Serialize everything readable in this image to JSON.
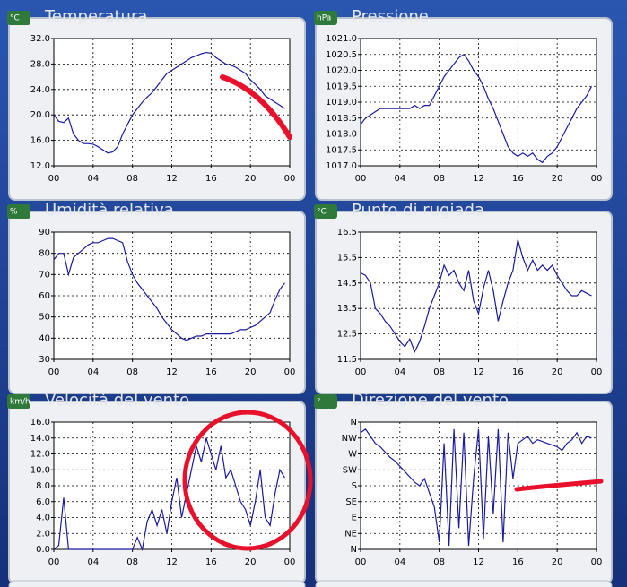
{
  "chart_data": [
    {
      "type": "line",
      "title": "Temperatura",
      "unit": "°C",
      "color": "#1a1aa0",
      "x": [
        0,
        0.5,
        1,
        1.5,
        2,
        2.5,
        3,
        3.5,
        4,
        4.5,
        5,
        5.5,
        6,
        6.5,
        7,
        7.5,
        8,
        8.5,
        9,
        9.5,
        10,
        10.5,
        11,
        11.5,
        12,
        12.5,
        13,
        13.5,
        14,
        14.5,
        15,
        15.5,
        16,
        16.5,
        17,
        17.5,
        18,
        18.5,
        19,
        19.5,
        20,
        20.5,
        21,
        21.5,
        22,
        22.5,
        23,
        23.5
      ],
      "values": [
        20,
        19,
        18.8,
        19.5,
        17,
        16,
        15.5,
        15.5,
        15.4,
        15,
        14.5,
        14,
        14.2,
        15,
        17,
        18.5,
        20,
        21,
        22,
        22.8,
        23.5,
        24.5,
        25.5,
        26.5,
        27,
        27.5,
        28,
        28.5,
        29,
        29.3,
        29.6,
        29.8,
        29.7,
        29,
        28.5,
        28,
        27.8,
        27.5,
        27,
        26.5,
        25.5,
        24.8,
        24,
        23,
        22.5,
        22,
        21.5,
        21
      ],
      "xlim": [
        0,
        24
      ],
      "xticks": [
        {
          "value": 0,
          "label": "00"
        },
        {
          "value": 4,
          "label": "04"
        },
        {
          "value": 8,
          "label": "08"
        },
        12,
        16,
        20,
        {
          "value": 24,
          "label": "00"
        }
      ],
      "ylim": [
        12,
        32
      ],
      "yticks": [
        {
          "value": 12,
          "label": "12.0"
        },
        {
          "value": 16,
          "label": "16.0"
        },
        {
          "value": 20,
          "label": "20.0"
        },
        {
          "value": 24,
          "label": "24.0"
        },
        {
          "value": 28,
          "label": "28.0"
        },
        {
          "value": 32,
          "label": "32.0"
        }
      ],
      "grid": true
    },
    {
      "type": "line",
      "title": "Pressione",
      "unit": "hPa",
      "color": "#1a1aa0",
      "x": [
        0,
        0.5,
        1,
        1.5,
        2,
        2.5,
        3,
        3.5,
        4,
        4.5,
        5,
        5.5,
        6,
        6.5,
        7,
        7.5,
        8,
        8.5,
        9,
        9.5,
        10,
        10.5,
        11,
        11.5,
        12,
        12.5,
        13,
        13.5,
        14,
        14.5,
        15,
        15.5,
        16,
        16.5,
        17,
        17.5,
        18,
        18.5,
        19,
        19.5,
        20,
        20.5,
        21,
        21.5,
        22,
        22.5,
        23,
        23.5
      ],
      "values": [
        1018.3,
        1018.5,
        1018.6,
        1018.7,
        1018.8,
        1018.8,
        1018.8,
        1018.8,
        1018.8,
        1018.8,
        1018.8,
        1018.9,
        1018.8,
        1018.9,
        1018.9,
        1019.2,
        1019.5,
        1019.8,
        1020,
        1020.2,
        1020.4,
        1020.5,
        1020.3,
        1020,
        1019.8,
        1019.5,
        1019.1,
        1018.8,
        1018.4,
        1018,
        1017.6,
        1017.4,
        1017.3,
        1017.4,
        1017.3,
        1017.4,
        1017.2,
        1017.1,
        1017.3,
        1017.4,
        1017.6,
        1017.9,
        1018.2,
        1018.5,
        1018.8,
        1019,
        1019.2,
        1019.5
      ],
      "xlim": [
        0,
        24
      ],
      "xticks": [
        {
          "value": 0,
          "label": "00"
        },
        {
          "value": 4,
          "label": "04"
        },
        {
          "value": 8,
          "label": "08"
        },
        12,
        16,
        20,
        {
          "value": 24,
          "label": "00"
        }
      ],
      "ylim": [
        1017,
        1021
      ],
      "yticks": [
        {
          "value": 1017,
          "label": "1017.0"
        },
        1017.5,
        {
          "value": 1018,
          "label": "1018.0"
        },
        1018.5,
        {
          "value": 1019,
          "label": "1019.0"
        },
        1019.5,
        {
          "value": 1020,
          "label": "1020.0"
        },
        1020.5,
        {
          "value": 1021,
          "label": "1021.0"
        }
      ],
      "grid": true
    },
    {
      "type": "line",
      "title": "Umidità relativa",
      "unit": "%",
      "color": "#1a1aa0",
      "x": [
        0,
        0.5,
        1,
        1.5,
        2,
        2.5,
        3,
        3.5,
        4,
        4.5,
        5,
        5.5,
        6,
        6.5,
        7,
        7.5,
        8,
        8.5,
        9,
        9.5,
        10,
        10.5,
        11,
        11.5,
        12,
        12.5,
        13,
        13.5,
        14,
        14.5,
        15,
        15.5,
        16,
        16.5,
        17,
        17.5,
        18,
        18.5,
        19,
        19.5,
        20,
        20.5,
        21,
        21.5,
        22,
        22.5,
        23,
        23.5
      ],
      "values": [
        77,
        80,
        80,
        70,
        78,
        80,
        82,
        84,
        85,
        85,
        86,
        87,
        87,
        86,
        85,
        76,
        70,
        66,
        63,
        60,
        57,
        54,
        50,
        47,
        44,
        42,
        40,
        39,
        40,
        41,
        41,
        42,
        42,
        42,
        42,
        42,
        42,
        43,
        44,
        44,
        45,
        46,
        48,
        50,
        52,
        58,
        63,
        66
      ],
      "xlim": [
        0,
        24
      ],
      "xticks": [
        {
          "value": 0,
          "label": "00"
        },
        {
          "value": 4,
          "label": "04"
        },
        {
          "value": 8,
          "label": "08"
        },
        12,
        16,
        20,
        {
          "value": 24,
          "label": "00"
        }
      ],
      "ylim": [
        30,
        90
      ],
      "yticks": [
        30,
        40,
        50,
        60,
        70,
        80,
        90
      ],
      "grid": true
    },
    {
      "type": "line",
      "title": "Punto di rugiada",
      "unit": "°C",
      "color": "#1a1aa0",
      "x": [
        0,
        0.5,
        1,
        1.5,
        2,
        2.5,
        3,
        3.5,
        4,
        4.5,
        5,
        5.5,
        6,
        6.5,
        7,
        7.5,
        8,
        8.5,
        9,
        9.5,
        10,
        10.5,
        11,
        11.5,
        12,
        12.5,
        13,
        13.5,
        14,
        14.5,
        15,
        15.5,
        16,
        16.5,
        17,
        17.5,
        18,
        18.5,
        19,
        19.5,
        20,
        20.5,
        21,
        21.5,
        22,
        22.5,
        23,
        23.5
      ],
      "values": [
        14.9,
        14.8,
        14.5,
        13.5,
        13.3,
        13.0,
        12.8,
        12.5,
        12.2,
        12.0,
        12.3,
        11.8,
        12.2,
        12.8,
        13.5,
        14.0,
        14.5,
        15.2,
        14.8,
        15.0,
        14.5,
        14.2,
        15.0,
        13.8,
        13.3,
        14.3,
        15.0,
        14.2,
        13.0,
        13.8,
        14.5,
        15.0,
        16.2,
        15.5,
        15.0,
        15.4,
        15.0,
        15.2,
        15.0,
        15.2,
        14.8,
        14.5,
        14.2,
        14.0,
        14.0,
        14.2,
        14.1,
        14.0
      ],
      "xlim": [
        0,
        24
      ],
      "xticks": [
        {
          "value": 0,
          "label": "00"
        },
        {
          "value": 4,
          "label": "04"
        },
        {
          "value": 8,
          "label": "08"
        },
        12,
        16,
        20,
        {
          "value": 24,
          "label": "00"
        }
      ],
      "ylim": [
        11.5,
        16.5
      ],
      "yticks": [
        11.5,
        12.5,
        13.5,
        14.5,
        15.5,
        16.5
      ],
      "grid": true
    },
    {
      "type": "line",
      "title": "Velocità del vento",
      "unit": "km/h",
      "color": "#1a1aa0",
      "x": [
        0,
        0.5,
        1,
        1.5,
        2,
        2.5,
        3,
        3.5,
        4,
        4.5,
        5,
        5.5,
        6,
        6.5,
        7,
        7.5,
        8,
        8.5,
        9,
        9.5,
        10,
        10.5,
        11,
        11.5,
        12,
        12.5,
        13,
        13.5,
        14,
        14.5,
        15,
        15.5,
        16,
        16.5,
        17,
        17.5,
        18,
        18.5,
        19,
        19.5,
        20,
        20.5,
        21,
        21.5,
        22,
        22.5,
        23,
        23.5
      ],
      "values": [
        0,
        0.5,
        6.5,
        0,
        0,
        0,
        0,
        0,
        0,
        0,
        0,
        0,
        0,
        0,
        0,
        0,
        0,
        1.5,
        0,
        3.5,
        5,
        3,
        5,
        2,
        6,
        9,
        4,
        7,
        10,
        13,
        11,
        14,
        12,
        10,
        13,
        9,
        10,
        8,
        6,
        5,
        3,
        6,
        10,
        4,
        3,
        7,
        10,
        9
      ],
      "xlim": [
        0,
        24
      ],
      "xticks": [
        {
          "value": 0,
          "label": "00"
        },
        {
          "value": 4,
          "label": "04"
        },
        {
          "value": 8,
          "label": "08"
        },
        12,
        16,
        20,
        {
          "value": 24,
          "label": "00"
        }
      ],
      "ylim": [
        0,
        16
      ],
      "yticks": [
        {
          "value": 0,
          "label": "0.0"
        },
        {
          "value": 2,
          "label": "2.0"
        },
        {
          "value": 4,
          "label": "4.0"
        },
        {
          "value": 6,
          "label": "6.0"
        },
        {
          "value": 8,
          "label": "8.0"
        },
        {
          "value": 10,
          "label": "10.0"
        },
        {
          "value": 12,
          "label": "12.0"
        },
        {
          "value": 14,
          "label": "14.0"
        },
        {
          "value": 16,
          "label": "16.0"
        }
      ],
      "grid": true
    },
    {
      "type": "line",
      "title": "Direzione del vento",
      "unit": "°",
      "color": "#1a1aa0",
      "x": [
        0,
        0.5,
        1,
        1.5,
        2,
        2.5,
        3,
        3.5,
        4,
        4.5,
        5,
        5.5,
        6,
        6.5,
        7,
        7.5,
        8,
        8.5,
        9,
        9.5,
        10,
        10.5,
        11,
        11.5,
        12,
        12.5,
        13,
        13.5,
        14,
        14.5,
        15,
        15.5,
        16,
        16.5,
        17,
        17.5,
        18,
        18.5,
        19,
        19.5,
        20,
        20.5,
        21,
        21.5,
        22,
        22.5,
        23,
        23.5
      ],
      "values": [
        330,
        340,
        320,
        300,
        290,
        275,
        260,
        250,
        235,
        220,
        205,
        190,
        180,
        200,
        160,
        120,
        20,
        300,
        10,
        340,
        60,
        330,
        10,
        200,
        340,
        30,
        320,
        100,
        340,
        20,
        330,
        200,
        300,
        310,
        320,
        300,
        310,
        305,
        300,
        295,
        290,
        280,
        300,
        310,
        330,
        300,
        320,
        315
      ],
      "xlim": [
        0,
        24
      ],
      "xticks": [
        {
          "value": 0,
          "label": "00"
        },
        {
          "value": 4,
          "label": "04"
        },
        {
          "value": 8,
          "label": "08"
        },
        12,
        16,
        20,
        {
          "value": 24,
          "label": "00"
        }
      ],
      "ylim": [
        0,
        360
      ],
      "yticks": [
        {
          "value": 0,
          "label": "N"
        },
        {
          "value": 45,
          "label": "NE"
        },
        {
          "value": 90,
          "label": "E"
        },
        {
          "value": 135,
          "label": "SE"
        },
        {
          "value": 180,
          "label": "S"
        },
        {
          "value": 225,
          "label": "SW"
        },
        {
          "value": 270,
          "label": "W"
        },
        {
          "value": 315,
          "label": "NW"
        },
        {
          "value": 360,
          "label": "N"
        }
      ],
      "grid": true
    }
  ]
}
